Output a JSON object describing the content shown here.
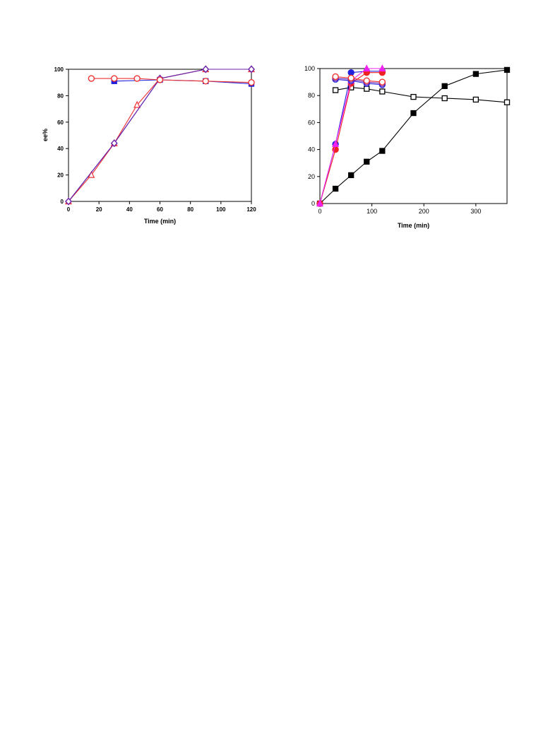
{
  "chart_data": [
    {
      "type": "line",
      "title": "",
      "xlabel": "Time (min)",
      "ylabel": "ee%",
      "xlim": [
        0,
        120
      ],
      "ylim": [
        0,
        100
      ],
      "xticks": [
        0,
        20,
        40,
        60,
        80,
        100,
        120
      ],
      "yticks": [
        0,
        20,
        40,
        60,
        80,
        100
      ],
      "grid": false,
      "series": [
        {
          "color": "#2222dd",
          "marker": "square-filled",
          "x": [
            30,
            60,
            90,
            120
          ],
          "y": [
            91,
            92,
            91,
            89
          ]
        },
        {
          "color": "#2222dd",
          "marker": "none",
          "x": [
            0,
            30,
            60,
            90,
            120
          ],
          "y": [
            0,
            44,
            93,
            100,
            100
          ]
        },
        {
          "color": "#ee3333",
          "marker": "triangle-open",
          "x": [
            0,
            15,
            30,
            45,
            60,
            90,
            120
          ],
          "y": [
            0,
            20,
            44,
            73,
            93,
            100,
            100
          ]
        },
        {
          "color": "#6a1fa8",
          "marker": "diamond-open",
          "x": [
            0,
            30,
            60,
            90,
            120
          ],
          "y": [
            0,
            44,
            93,
            100,
            100
          ]
        },
        {
          "color": "#ee3333",
          "marker": "circle-open",
          "x": [
            15,
            30,
            45,
            60,
            90,
            120
          ],
          "y": [
            93,
            93,
            93,
            92,
            91,
            90
          ]
        }
      ]
    },
    {
      "type": "line",
      "title": "",
      "xlabel": "Time (min)",
      "ylabel": "",
      "xlim": [
        0,
        360
      ],
      "ylim": [
        0,
        100
      ],
      "xticks": [
        0,
        100,
        200,
        300
      ],
      "yticks": [
        0,
        20,
        40,
        60,
        80,
        100
      ],
      "grid": false,
      "series": [
        {
          "color": "#000000",
          "marker": "square-filled",
          "x": [
            0,
            30,
            60,
            90,
            120,
            180,
            240,
            300,
            360
          ],
          "y": [
            0,
            11,
            21,
            31,
            39,
            67,
            87,
            96,
            99
          ]
        },
        {
          "color": "#000000",
          "marker": "square-open",
          "x": [
            30,
            60,
            90,
            120,
            180,
            240,
            300,
            360
          ],
          "y": [
            84,
            86,
            85,
            83,
            79,
            78,
            77,
            75
          ]
        },
        {
          "color": "#2222dd",
          "marker": "circle-filled",
          "x": [
            0,
            30,
            60,
            90,
            120
          ],
          "y": [
            0,
            44,
            97,
            98,
            98
          ]
        },
        {
          "color": "#ee2222",
          "marker": "circle-filled",
          "x": [
            0,
            30,
            60,
            90,
            120
          ],
          "y": [
            0,
            40,
            89,
            97,
            97
          ]
        },
        {
          "color": "#ee22ee",
          "marker": "triangle-filled",
          "x": [
            0,
            30,
            60,
            90,
            120
          ],
          "y": [
            0,
            44,
            91,
            100,
            100
          ]
        },
        {
          "color": "#2222dd",
          "marker": "circle-open",
          "x": [
            30,
            60,
            90,
            120
          ],
          "y": [
            92,
            91,
            89,
            88
          ]
        },
        {
          "color": "#6a1fa8",
          "marker": "circle-open",
          "x": [
            30,
            60,
            90,
            120
          ],
          "y": [
            93,
            92,
            90,
            89
          ]
        },
        {
          "color": "#ee3333",
          "marker": "circle-open",
          "x": [
            30,
            60,
            90,
            120
          ],
          "y": [
            94,
            93,
            91,
            90
          ]
        }
      ]
    }
  ]
}
